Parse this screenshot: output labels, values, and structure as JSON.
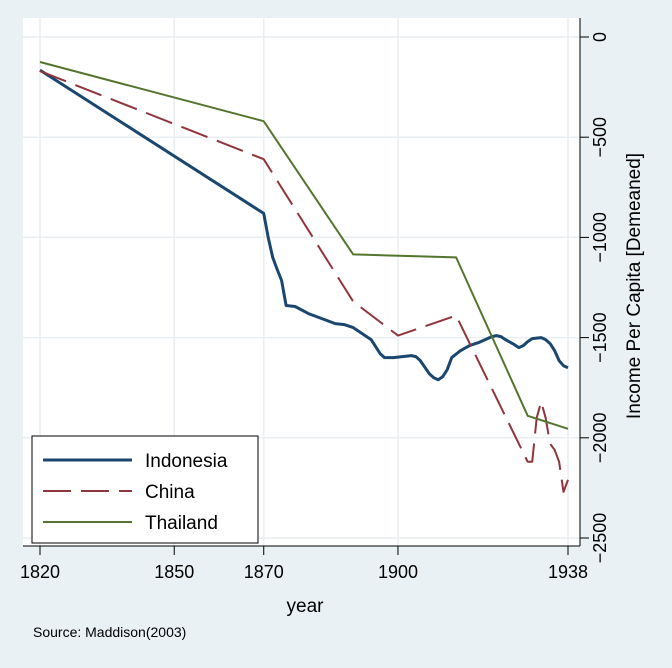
{
  "chart_data": {
    "type": "line",
    "title": "",
    "xlabel": "year",
    "ylabel": "Income Per Capita [Demeaned]",
    "note": "Source: Maddison(2003)",
    "xlim": [
      1820,
      1938
    ],
    "ylim": [
      -2500,
      0
    ],
    "xticks": [
      1820,
      1850,
      1870,
      1900,
      1938
    ],
    "yticks": [
      0,
      -500,
      -1000,
      -1500,
      -2000,
      -2500
    ],
    "grid": true,
    "legend_position": "bottom-left",
    "colors": {
      "background": "#eaf1f4",
      "plot_background": "#ffffff",
      "grid": "#e8eef1"
    },
    "series": [
      {
        "name": "Indonesia",
        "color": "#1a476f",
        "dash": "",
        "width": 3,
        "points": [
          [
            1820,
            -165
          ],
          [
            1870,
            -880
          ],
          [
            1871,
            -1000
          ],
          [
            1872,
            -1100
          ],
          [
            1873,
            -1160
          ],
          [
            1874,
            -1215
          ],
          [
            1875,
            -1340
          ],
          [
            1877,
            -1345
          ],
          [
            1880,
            -1380
          ],
          [
            1883,
            -1405
          ],
          [
            1886,
            -1430
          ],
          [
            1888,
            -1435
          ],
          [
            1890,
            -1450
          ],
          [
            1892,
            -1480
          ],
          [
            1894,
            -1510
          ],
          [
            1896,
            -1580
          ],
          [
            1897,
            -1600
          ],
          [
            1899,
            -1600
          ],
          [
            1901,
            -1595
          ],
          [
            1903,
            -1590
          ],
          [
            1904,
            -1595
          ],
          [
            1905,
            -1615
          ],
          [
            1907,
            -1680
          ],
          [
            1908,
            -1700
          ],
          [
            1909,
            -1710
          ],
          [
            1910,
            -1695
          ],
          [
            1911,
            -1660
          ],
          [
            1912,
            -1600
          ],
          [
            1914,
            -1565
          ],
          [
            1916,
            -1540
          ],
          [
            1918,
            -1525
          ],
          [
            1919,
            -1515
          ],
          [
            1921,
            -1495
          ],
          [
            1922,
            -1490
          ],
          [
            1923,
            -1495
          ],
          [
            1924,
            -1510
          ],
          [
            1926,
            -1535
          ],
          [
            1927,
            -1550
          ],
          [
            1928,
            -1540
          ],
          [
            1929,
            -1520
          ],
          [
            1930,
            -1505
          ],
          [
            1932,
            -1500
          ],
          [
            1933,
            -1510
          ],
          [
            1934,
            -1530
          ],
          [
            1935,
            -1565
          ],
          [
            1936,
            -1615
          ],
          [
            1937,
            -1640
          ],
          [
            1938,
            -1650
          ]
        ]
      },
      {
        "name": "China",
        "color": "#90353b",
        "dash": "28 10",
        "width": 2,
        "points": [
          [
            1820,
            -170
          ],
          [
            1870,
            -610
          ],
          [
            1890,
            -1320
          ],
          [
            1900,
            -1490
          ],
          [
            1913,
            -1390
          ],
          [
            1929,
            -2120
          ],
          [
            1930,
            -2120
          ],
          [
            1931,
            -1900
          ],
          [
            1932,
            -1820
          ],
          [
            1933,
            -1900
          ],
          [
            1934,
            -2030
          ],
          [
            1935,
            -2060
          ],
          [
            1936,
            -2120
          ],
          [
            1937,
            -2270
          ],
          [
            1938,
            -2210
          ]
        ]
      },
      {
        "name": "Thailand",
        "color": "#55752f",
        "dash": "",
        "width": 2,
        "points": [
          [
            1820,
            -125
          ],
          [
            1870,
            -420
          ],
          [
            1890,
            -1085
          ],
          [
            1913,
            -1100
          ],
          [
            1929,
            -1890
          ],
          [
            1938,
            -1955
          ]
        ]
      }
    ]
  }
}
